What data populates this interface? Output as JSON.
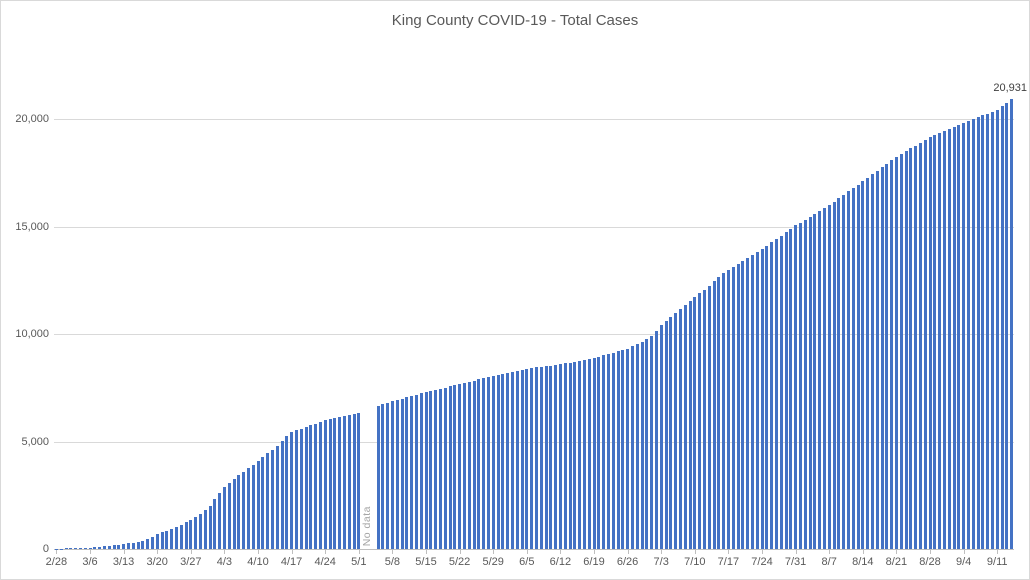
{
  "chart_data": {
    "type": "bar",
    "title": "King County COVID-19 - Total Cases",
    "bar_color": "#4472c4",
    "grid": "horizontal",
    "legend": "none",
    "y_max": 22000,
    "y_ticks": [
      0,
      5000,
      10000,
      15000,
      20000
    ],
    "y_tick_labels": [
      "0",
      "5,000",
      "10,000",
      "15,000",
      "20,000"
    ],
    "x_tick_every": 7,
    "x_tick_labels": [
      "2/28",
      "3/6",
      "3/13",
      "3/20",
      "3/27",
      "4/3",
      "4/10",
      "4/17",
      "4/24",
      "5/1",
      "5/8",
      "5/15",
      "5/22",
      "5/29",
      "6/5",
      "6/12",
      "6/19",
      "6/26",
      "7/3",
      "7/10",
      "7/17",
      "7/24",
      "7/31",
      "8/7",
      "8/14",
      "8/21",
      "8/28",
      "9/4",
      "9/11"
    ],
    "x_start_label": "2/28",
    "no_data_label": "No data",
    "no_data_index": 65,
    "last_value_label": "20,931",
    "values": [
      15,
      20,
      30,
      40,
      50,
      55,
      60,
      70,
      85,
      105,
      120,
      150,
      180,
      210,
      240,
      270,
      300,
      330,
      395,
      460,
      580,
      700,
      775,
      850,
      930,
      1010,
      1125,
      1245,
      1360,
      1495,
      1630,
      1820,
      2010,
      2305,
      2605,
      2900,
      3075,
      3250,
      3420,
      3590,
      3755,
      3920,
      4090,
      4270,
      4445,
      4620,
      4800,
      5015,
      5235,
      5450,
      5525,
      5600,
      5675,
      5750,
      5835,
      5915,
      6000,
      6050,
      6100,
      6150,
      6200,
      6245,
      6295,
      6340,
      null,
      null,
      null,
      6650,
      6725,
      6805,
      6880,
      6940,
      7000,
      7060,
      7120,
      7180,
      7240,
      7300,
      7355,
      7405,
      7460,
      7510,
      7565,
      7615,
      7670,
      7725,
      7780,
      7835,
      7890,
      7940,
      7995,
      8050,
      8100,
      8145,
      8195,
      8245,
      8295,
      8340,
      8390,
      8420,
      8445,
      8475,
      8505,
      8530,
      8560,
      8590,
      8630,
      8675,
      8720,
      8760,
      8805,
      8845,
      8890,
      8950,
      9015,
      9075,
      9135,
      9195,
      9260,
      9320,
      9420,
      9520,
      9620,
      9760,
      9900,
      10150,
      10400,
      10585,
      10770,
      10955,
      11145,
      11330,
      11515,
      11700,
      11885,
      12070,
      12255,
      12445,
      12630,
      12815,
      13000,
      13135,
      13270,
      13405,
      13545,
      13680,
      13815,
      13950,
      14105,
      14265,
      14420,
      14580,
      14735,
      14895,
      15050,
      15185,
      15320,
      15455,
      15595,
      15730,
      15865,
      16000,
      16155,
      16315,
      16470,
      16630,
      16785,
      16945,
      17100,
      17265,
      17430,
      17590,
      17755,
      17920,
      18085,
      18250,
      18380,
      18505,
      18635,
      18765,
      18895,
      19020,
      19150,
      19245,
      19345,
      19440,
      19540,
      19635,
      19735,
      19830,
      19915,
      20000,
      20085,
      20165,
      20250,
      20335,
      20420,
      20590,
      20760,
      20931
    ]
  }
}
